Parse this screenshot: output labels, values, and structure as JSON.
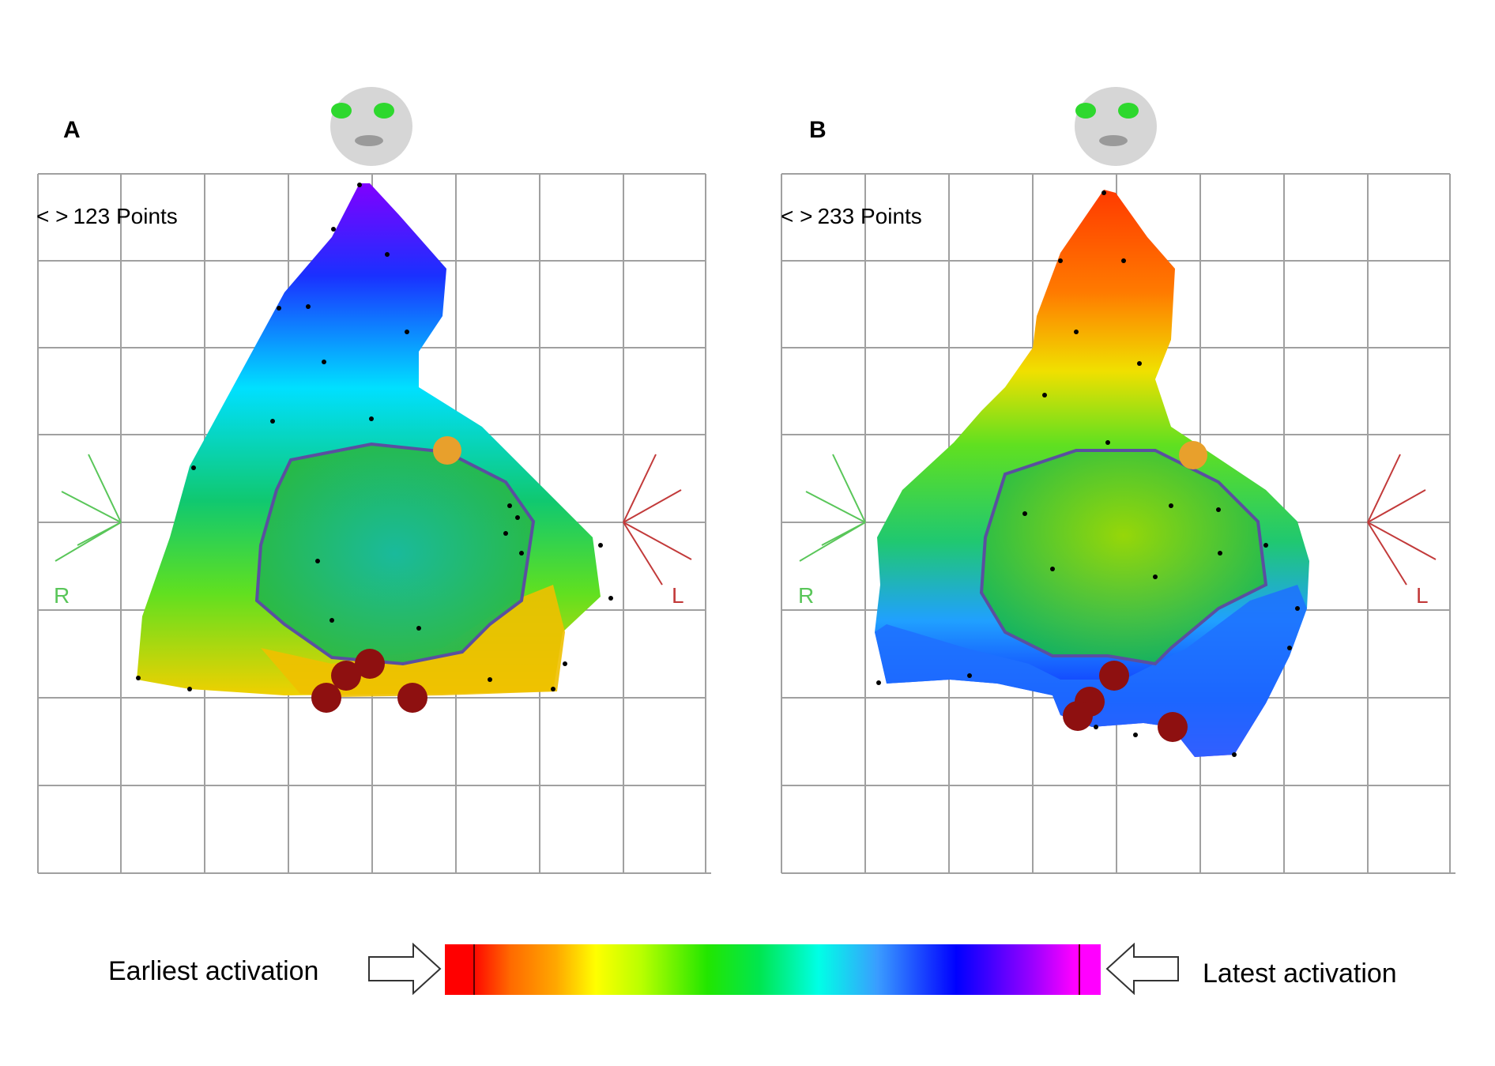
{
  "panels": [
    {
      "letter": "A",
      "points_label": "123 Points",
      "right_label": "R",
      "left_label": "L"
    },
    {
      "letter": "B",
      "points_label": "233 Points",
      "right_label": "R",
      "left_label": "L"
    }
  ],
  "points_arrows": "< >",
  "legend": {
    "earliest": "Earliest activation",
    "latest": "Latest activation"
  },
  "colorbar_colors": [
    "#ff0000",
    "#ff6a00",
    "#ffff00",
    "#22e600",
    "#00ffe6",
    "#0000ff",
    "#ff00ff"
  ]
}
